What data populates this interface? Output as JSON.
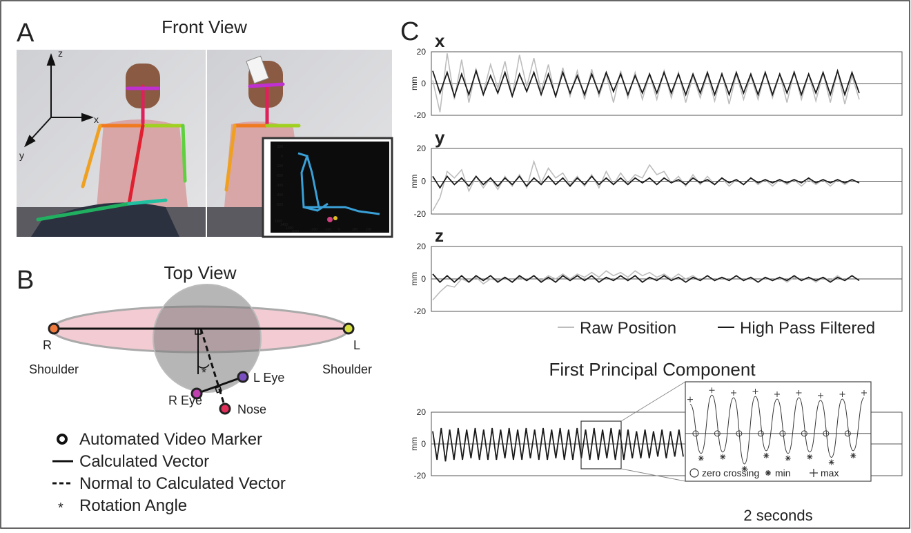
{
  "panel_a": {
    "letter": "A",
    "title": "Front View",
    "axes": {
      "z": "z",
      "x": "x",
      "y": "y"
    },
    "inset": {
      "y_labels": [
        100,
        0,
        -100,
        -200,
        -300,
        -400,
        -500
      ],
      "x_labels": [
        1600,
        1400,
        1200,
        1000
      ],
      "z_labels": [
        -200,
        -100,
        0,
        100,
        200
      ]
    }
  },
  "panel_b": {
    "letter": "B",
    "title": "Top View",
    "labels": {
      "r": "R",
      "r_shoulder": "Shoulder",
      "l": "L",
      "l_shoulder": "Shoulder",
      "l_eye": "L Eye",
      "r_eye": "R Eye",
      "nose": "Nose",
      "angle": "*"
    },
    "legend": [
      "Automated Video Marker",
      "Calculated Vector",
      "Normal to Calculated Vector",
      "Rotation Angle"
    ]
  },
  "panel_c": {
    "letter": "C"
  },
  "chart_data": [
    {
      "type": "line",
      "title": "x",
      "y_label": "mm",
      "ylim": [
        -20,
        20
      ],
      "yticks": [
        20,
        0,
        -20
      ],
      "series": [
        {
          "name": "Raw Position",
          "color": "#bdbdbd",
          "values": [
            2,
            -18,
            19,
            -10,
            15,
            -12,
            9,
            -6,
            12,
            -3,
            14,
            -8,
            18,
            -2,
            16,
            -5,
            12,
            -9,
            10,
            -8,
            8,
            -10,
            9,
            -8,
            6,
            -12,
            8,
            -9,
            7,
            -10,
            6,
            -10,
            8,
            -9,
            7,
            -12,
            5,
            -9,
            6,
            -11,
            7,
            -13,
            6,
            -10,
            5,
            -10,
            7,
            -9,
            6,
            -12,
            8,
            -10,
            6,
            -11,
            7,
            -12,
            8,
            -13,
            5,
            -10
          ]
        },
        {
          "name": "High Pass Filtered",
          "color": "#1a1a1a",
          "values": [
            8,
            -6,
            7,
            -8,
            6,
            -7,
            8,
            -7,
            5,
            -6,
            7,
            -8,
            6,
            -5,
            7,
            -7,
            6,
            -8,
            7,
            -6,
            5,
            -7,
            6,
            -6,
            7,
            -5,
            6,
            -7,
            5,
            -6,
            6,
            -6,
            7,
            -6,
            6,
            -7,
            6,
            -6,
            7,
            -7,
            6,
            -7,
            7,
            -6,
            6,
            -7,
            7,
            -7,
            6,
            -6,
            7,
            -7,
            6,
            -6,
            7,
            -7,
            8,
            -7,
            7,
            -6
          ]
        }
      ]
    },
    {
      "type": "line",
      "title": "y",
      "y_label": "mm",
      "ylim": [
        -20,
        20
      ],
      "yticks": [
        20,
        0,
        -20
      ],
      "series": [
        {
          "color": "#bdbdbd",
          "values": [
            -18,
            -10,
            6,
            2,
            7,
            -6,
            3,
            -4,
            2,
            -5,
            3,
            -3,
            4,
            -4,
            12,
            -1,
            8,
            2,
            5,
            -2,
            3,
            -3,
            4,
            -4,
            6,
            -2,
            5,
            -1,
            4,
            2,
            10,
            4,
            6,
            -1,
            3,
            -3,
            4,
            -2,
            3,
            -2,
            2,
            -3,
            1,
            -2,
            2,
            -2,
            1,
            -3,
            1,
            -2,
            1,
            -3,
            1,
            -2,
            1,
            -3,
            1,
            -2,
            1,
            -1
          ]
        },
        {
          "color": "#1a1a1a",
          "values": [
            3,
            -4,
            3,
            -2,
            2,
            -3,
            3,
            -2,
            2,
            -3,
            2,
            -2,
            3,
            -3,
            2,
            -2,
            3,
            -2,
            2,
            -3,
            2,
            -2,
            3,
            -2,
            2,
            -2,
            2,
            -2,
            2,
            -1,
            2,
            -2,
            2,
            -1,
            1,
            -2,
            2,
            -1,
            1,
            -2,
            2,
            -1,
            1,
            -2,
            2,
            -1,
            1,
            -1,
            1,
            -1,
            1,
            -1,
            2,
            -1,
            1,
            -1,
            1,
            -1,
            1,
            -1
          ]
        }
      ]
    },
    {
      "type": "line",
      "title": "z",
      "y_label": "mm",
      "ylim": [
        -20,
        20
      ],
      "yticks": [
        20,
        0,
        -20
      ],
      "series": [
        {
          "color": "#bdbdbd",
          "values": [
            -13,
            -8,
            -4,
            -5,
            0,
            -2,
            1,
            -3,
            0,
            -1,
            1,
            -2,
            1,
            -1,
            2,
            -1,
            2,
            0,
            3,
            0,
            3,
            1,
            4,
            1,
            5,
            2,
            4,
            1,
            5,
            2,
            4,
            1,
            3,
            0,
            3,
            0,
            2,
            -1,
            2,
            -1,
            1,
            -1,
            2,
            -1,
            1,
            -2,
            1,
            -1,
            1,
            -2,
            1,
            -1,
            1,
            -2,
            1,
            -1,
            2,
            -1,
            2,
            -1
          ]
        },
        {
          "color": "#1a1a1a",
          "values": [
            3,
            -2,
            2,
            -2,
            2,
            -2,
            2,
            -1,
            2,
            -2,
            1,
            -2,
            2,
            -1,
            2,
            -2,
            1,
            -2,
            2,
            -1,
            2,
            -1,
            2,
            -2,
            1,
            -1,
            2,
            -1,
            2,
            -2,
            1,
            -1,
            2,
            -1,
            1,
            -2,
            1,
            -1,
            2,
            -1,
            1,
            -1,
            2,
            -1,
            1,
            -2,
            1,
            -1,
            1,
            -1,
            2,
            -1,
            1,
            -1,
            1,
            -2,
            1,
            -1,
            2,
            -1
          ]
        }
      ]
    },
    {
      "type": "line",
      "title": "First Principal Component",
      "y_label": "mm",
      "ylim": [
        -20,
        20
      ],
      "yticks": [
        20,
        0,
        -20
      ],
      "series": [
        {
          "color": "#1a1a1a",
          "values": [
            8,
            -10,
            10,
            -11,
            9,
            -10,
            10,
            -10,
            9,
            -9,
            10,
            -10,
            9,
            -10,
            10,
            -10,
            9,
            -9,
            10,
            -10,
            9,
            -10,
            10,
            -9,
            9,
            -10,
            10,
            -10,
            9,
            -9,
            10,
            -10,
            9,
            -10,
            10,
            -9,
            9,
            -10,
            10,
            -10,
            9,
            -9,
            10,
            -10,
            9,
            -10,
            9,
            -9,
            8,
            -9,
            9,
            -9,
            8,
            -8,
            9,
            -9,
            8,
            -8,
            9,
            -8
          ]
        }
      ]
    },
    {
      "type": "extrema",
      "caption": "2 seconds",
      "ylim": [
        -36,
        39
      ],
      "color": "#333333",
      "values": [
        22,
        -15,
        29,
        -14,
        27,
        -23,
        28,
        -13,
        26,
        -15,
        27,
        -14,
        25,
        -18,
        26,
        -13,
        27
      ],
      "zero_crossings": [
        0.5,
        2.5,
        4.5,
        6.5,
        8.5,
        10.5,
        12.5,
        14.5
      ],
      "legend": [
        "zero crossing",
        "min",
        "max"
      ]
    }
  ]
}
